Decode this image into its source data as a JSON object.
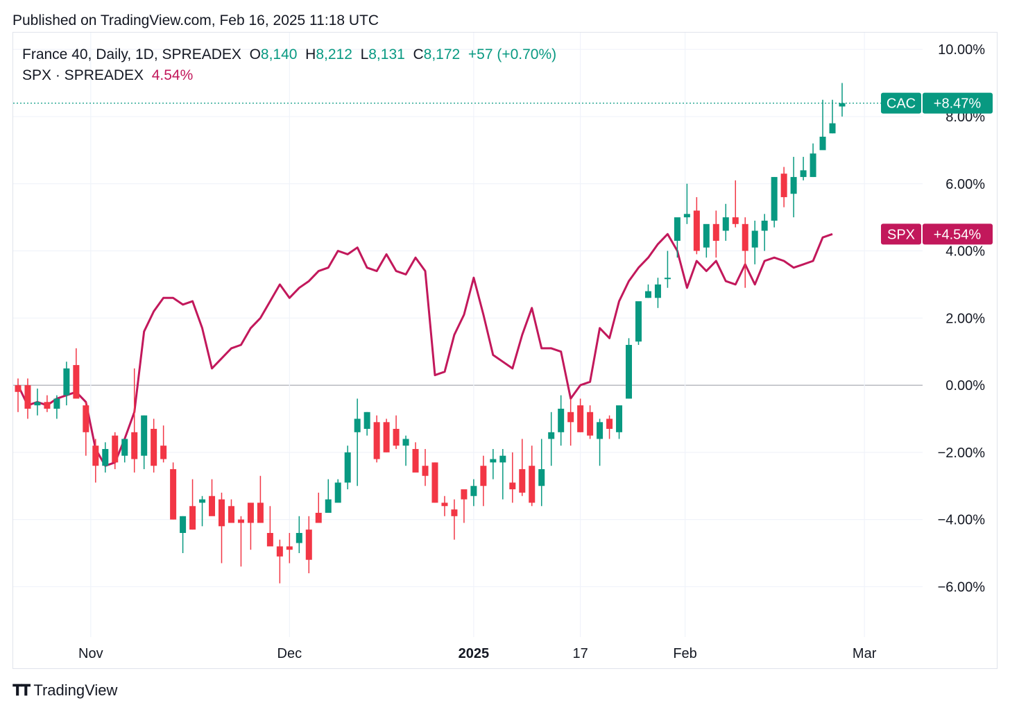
{
  "header": {
    "published": "Published on TradingView.com, Feb 16, 2025 11:18 UTC"
  },
  "legend": {
    "main_symbol": "France 40, Daily, 1D, SPREADEX",
    "o_label": "O",
    "o_value": "8,140",
    "h_label": "H",
    "h_value": "8,212",
    "l_label": "L",
    "l_value": "8,131",
    "c_label": "C",
    "c_value": "8,172",
    "change": "+57 (+0.70%)",
    "compare_symbol": "SPX · SPREADEX",
    "compare_value": "4.54%"
  },
  "tags": {
    "cac_name": "CAC",
    "cac_value": "+8.47%",
    "spx_name": "SPX",
    "spx_value": "+4.54%"
  },
  "footer": {
    "brand": "TradingView"
  },
  "colors": {
    "up": "#089981",
    "down": "#f23645",
    "spx": "#c2185b",
    "grid": "#f0f3fa",
    "zero": "#9598a1"
  },
  "chart_data": {
    "type": "candlestick+line",
    "y_unit": "%",
    "ylim": [
      -7.5,
      10.5
    ],
    "y_ticks": [
      {
        "v": 10,
        "label": "10.00%"
      },
      {
        "v": 8,
        "label": "8.00%"
      },
      {
        "v": 6,
        "label": "6.00%"
      },
      {
        "v": 4,
        "label": "4.00%"
      },
      {
        "v": 2,
        "label": "2.00%"
      },
      {
        "v": 0,
        "label": "0.00%"
      },
      {
        "v": -2,
        "label": "−2.00%"
      },
      {
        "v": -4,
        "label": "−4.00%"
      },
      {
        "v": -6,
        "label": "−6.00%"
      }
    ],
    "x_ticks": [
      {
        "i": 7.5,
        "label": "Nov",
        "bold": false
      },
      {
        "i": 28,
        "label": "Dec",
        "bold": false
      },
      {
        "i": 47,
        "label": "2025",
        "bold": true
      },
      {
        "i": 58,
        "label": "17",
        "bold": false
      },
      {
        "i": 68.8,
        "label": "Feb",
        "bold": false
      },
      {
        "i": 87.3,
        "label": "Mar",
        "bold": false
      }
    ],
    "x_range": [
      -0.5,
      93.3
    ],
    "series": [
      {
        "name": "France 40",
        "kind": "candles",
        "candles": [
          [
            0.0,
            -0.8,
            0.2,
            -0.2
          ],
          [
            -0.0,
            -1.0,
            0.2,
            -0.7
          ],
          [
            -0.6,
            -0.9,
            -0.1,
            -0.5
          ],
          [
            -0.5,
            -0.8,
            -0.3,
            -0.7
          ],
          [
            -0.7,
            -1.0,
            -0.3,
            -0.4
          ],
          [
            -0.3,
            -0.6,
            0.7,
            0.5
          ],
          [
            0.6,
            -0.2,
            1.1,
            -0.4
          ],
          [
            -0.6,
            -2.1,
            -0.5,
            -1.4
          ],
          [
            -1.8,
            -2.9,
            -1.6,
            -2.4
          ],
          [
            -2.4,
            -2.6,
            -1.7,
            -1.9
          ],
          [
            -1.5,
            -2.5,
            -1.4,
            -2.3
          ],
          [
            -2.1,
            -2.3,
            -1.6,
            -1.6
          ],
          [
            -1.4,
            -2.6,
            0.5,
            -2.2
          ],
          [
            -2.1,
            -2.5,
            -0.9,
            -0.9
          ],
          [
            -1.3,
            -2.6,
            -1.0,
            -2.4
          ],
          [
            -1.8,
            -2.3,
            -1.2,
            -2.2
          ],
          [
            -2.5,
            -4.0,
            -2.3,
            -4.0
          ],
          [
            -4.4,
            -5.0,
            -3.9,
            -3.9
          ],
          [
            -3.6,
            -4.3,
            -2.8,
            -4.3
          ],
          [
            -3.5,
            -4.2,
            -3.3,
            -3.4
          ],
          [
            -3.3,
            -3.8,
            -2.8,
            -3.9
          ],
          [
            -3.4,
            -5.3,
            -3.2,
            -4.2
          ],
          [
            -3.6,
            -4.1,
            -3.4,
            -4.1
          ],
          [
            -4.0,
            -5.4,
            -3.9,
            -4.1
          ],
          [
            -3.5,
            -4.9,
            -3.5,
            -4.1
          ],
          [
            -3.5,
            -4.1,
            -2.7,
            -4.1
          ],
          [
            -4.4,
            -4.7,
            -3.6,
            -4.8
          ],
          [
            -4.8,
            -5.9,
            -4.6,
            -5.1
          ],
          [
            -4.8,
            -5.3,
            -4.4,
            -4.9
          ],
          [
            -4.7,
            -5.0,
            -3.9,
            -4.4
          ],
          [
            -4.3,
            -5.6,
            -3.9,
            -5.2
          ],
          [
            -3.8,
            -4.0,
            -3.2,
            -4.1
          ],
          [
            -3.8,
            -3.6,
            -2.8,
            -3.4
          ],
          [
            -3.5,
            -3.3,
            -2.8,
            -2.9
          ],
          [
            -2.9,
            -3.1,
            -1.8,
            -2.0
          ],
          [
            -1.4,
            -3.0,
            -0.4,
            -1.0
          ],
          [
            -1.3,
            -1.5,
            -0.8,
            -0.8
          ],
          [
            -1.1,
            -2.3,
            -0.9,
            -2.2
          ],
          [
            -1.1,
            -2.0,
            -1.0,
            -2.0
          ],
          [
            -1.3,
            -1.9,
            -0.9,
            -1.8
          ],
          [
            -1.8,
            -2.4,
            -1.5,
            -1.6
          ],
          [
            -1.9,
            -2.5,
            -1.7,
            -2.6
          ],
          [
            -2.4,
            -3.0,
            -1.9,
            -2.7
          ],
          [
            -2.3,
            -3.5,
            -2.3,
            -3.5
          ],
          [
            -3.5,
            -3.9,
            -3.3,
            -3.6
          ],
          [
            -3.7,
            -4.6,
            -3.4,
            -3.9
          ],
          [
            -3.1,
            -4.1,
            -3.3,
            -3.4
          ],
          [
            -3.3,
            -3.6,
            -2.8,
            -3.0
          ],
          [
            -2.4,
            -3.6,
            -2.1,
            -3.0
          ],
          [
            -2.3,
            -2.8,
            -1.9,
            -2.2
          ],
          [
            -2.3,
            -3.4,
            -1.9,
            -2.1
          ],
          [
            -2.9,
            -3.5,
            -2.0,
            -3.1
          ],
          [
            -2.5,
            -3.3,
            -1.6,
            -3.2
          ],
          [
            -2.4,
            -3.6,
            -1.8,
            -3.5
          ],
          [
            -3.0,
            -3.6,
            -1.6,
            -2.5
          ],
          [
            -1.6,
            -2.4,
            -0.8,
            -1.4
          ],
          [
            -1.4,
            -1.8,
            -0.3,
            -0.7
          ],
          [
            -0.8,
            -1.8,
            -0.4,
            -1.1
          ],
          [
            -0.6,
            -1.4,
            -0.4,
            -1.4
          ],
          [
            -0.8,
            -1.6,
            -0.6,
            -1.5
          ],
          [
            -1.6,
            -2.4,
            -1.0,
            -1.1
          ],
          [
            -1.0,
            -1.6,
            -0.9,
            -1.3
          ],
          [
            -1.4,
            -1.6,
            -0.7,
            -0.6
          ],
          [
            -0.4,
            -0.4,
            1.4,
            1.2
          ],
          [
            1.3,
            1.2,
            2.4,
            2.5
          ],
          [
            2.6,
            2.6,
            3.0,
            2.8
          ],
          [
            2.6,
            2.3,
            3.2,
            3.0
          ],
          [
            3.2,
            2.9,
            4.0,
            3.2
          ],
          [
            4.3,
            3.8,
            4.3,
            5.0
          ],
          [
            5.0,
            4.8,
            6.0,
            5.1
          ],
          [
            5.2,
            3.9,
            5.6,
            4.0
          ],
          [
            4.1,
            3.8,
            4.7,
            4.8
          ],
          [
            4.8,
            3.8,
            5.2,
            4.3
          ],
          [
            4.6,
            4.3,
            5.4,
            5.0
          ],
          [
            5.0,
            4.7,
            6.1,
            4.8
          ],
          [
            4.8,
            2.9,
            5.0,
            4.0
          ],
          [
            4.1,
            3.6,
            4.9,
            4.6
          ],
          [
            4.6,
            4.0,
            5.1,
            4.9
          ],
          [
            4.9,
            4.7,
            6.2,
            6.2
          ],
          [
            6.3,
            5.3,
            6.5,
            5.6
          ],
          [
            5.7,
            5.0,
            6.8,
            6.2
          ],
          [
            6.2,
            6.1,
            6.8,
            6.4
          ],
          [
            6.2,
            6.2,
            7.2,
            6.9
          ],
          [
            7.0,
            7.1,
            8.5,
            7.4
          ],
          [
            7.5,
            7.5,
            8.5,
            7.8
          ],
          [
            8.3,
            8.0,
            9.0,
            8.4
          ]
        ]
      },
      {
        "name": "SPX",
        "kind": "line",
        "values": [
          0.0,
          -0.6,
          -0.5,
          -0.6,
          -0.4,
          -0.3,
          -0.2,
          -0.5,
          -1.9,
          -2.4,
          -2.3,
          -1.6,
          -0.8,
          1.6,
          2.2,
          2.6,
          2.6,
          2.4,
          2.5,
          1.7,
          0.5,
          0.8,
          1.1,
          1.2,
          1.7,
          2.0,
          2.5,
          3.0,
          2.6,
          2.9,
          3.1,
          3.4,
          3.5,
          4.0,
          3.9,
          4.1,
          3.5,
          3.4,
          3.9,
          3.4,
          3.3,
          3.8,
          3.4,
          0.3,
          0.4,
          1.5,
          2.1,
          3.2,
          2.1,
          0.9,
          0.7,
          0.5,
          1.5,
          2.3,
          1.1,
          1.1,
          1.0,
          -0.4,
          0.0,
          0.1,
          1.7,
          1.4,
          2.5,
          3.1,
          3.5,
          3.8,
          4.2,
          4.5,
          4.0,
          2.9,
          3.7,
          3.4,
          3.7,
          3.1,
          3.0,
          3.6,
          3.0,
          3.7,
          3.8,
          3.7,
          3.5,
          3.6,
          3.7,
          4.4,
          4.5
        ]
      }
    ]
  }
}
